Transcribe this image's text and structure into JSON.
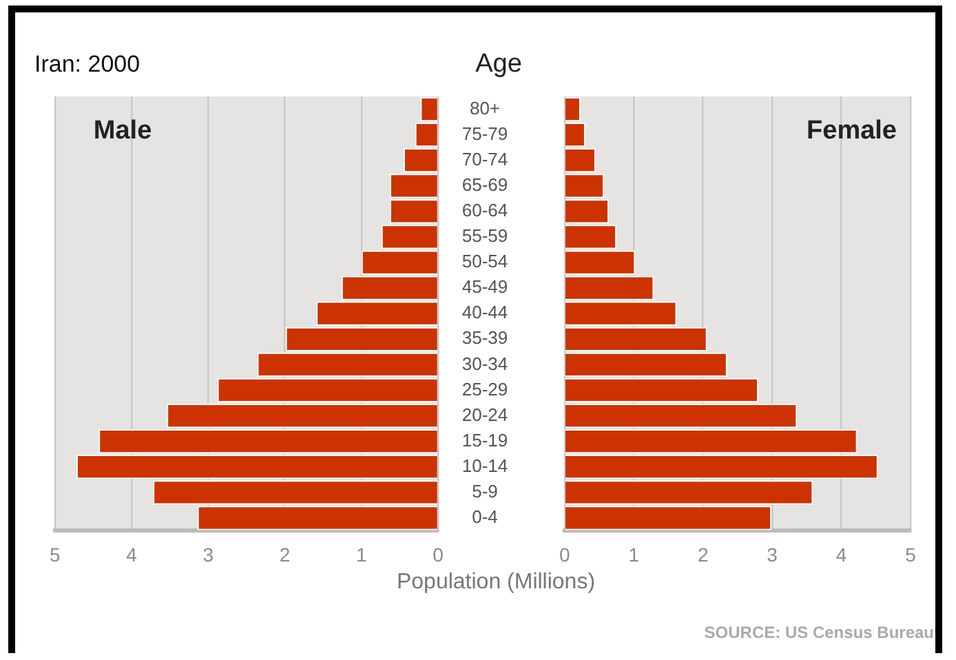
{
  "chart_data": [
    {
      "type": "bar",
      "orientation": "horizontal",
      "title": "Iran: 2000",
      "xlabel": "Population (Millions)",
      "categories": [
        "80+",
        "75-79",
        "70-74",
        "65-69",
        "60-64",
        "55-59",
        "50-54",
        "45-49",
        "40-44",
        "35-39",
        "30-34",
        "25-29",
        "20-24",
        "15-19",
        "10-14",
        "5-9",
        "0-4"
      ],
      "series": [
        {
          "name": "Male",
          "color": "#cc3300",
          "values": [
            0.23,
            0.3,
            0.45,
            0.63,
            0.63,
            0.74,
            1.0,
            1.26,
            1.59,
            1.99,
            2.36,
            2.88,
            3.54,
            4.43,
            4.72,
            3.72,
            3.14
          ]
        }
      ],
      "xlim": [
        5,
        0
      ],
      "xticks": [
        5,
        4,
        3,
        2,
        1,
        0
      ],
      "grid": "x"
    },
    {
      "type": "bar",
      "orientation": "horizontal",
      "ylabel": "Age",
      "annotations": [
        "SOURCE: US Census Bureau"
      ],
      "series": [
        {
          "name": "Female",
          "color": "#cc3300",
          "values": [
            0.23,
            0.3,
            0.45,
            0.57,
            0.64,
            0.75,
            1.02,
            1.29,
            1.62,
            2.06,
            2.35,
            2.8,
            3.36,
            4.23,
            4.53,
            3.59,
            2.99
          ]
        }
      ],
      "xlim": [
        0,
        5
      ],
      "xticks": [
        0,
        1,
        2,
        3,
        4,
        5
      ],
      "grid": "x",
      "tick_labels": "x"
    }
  ]
}
